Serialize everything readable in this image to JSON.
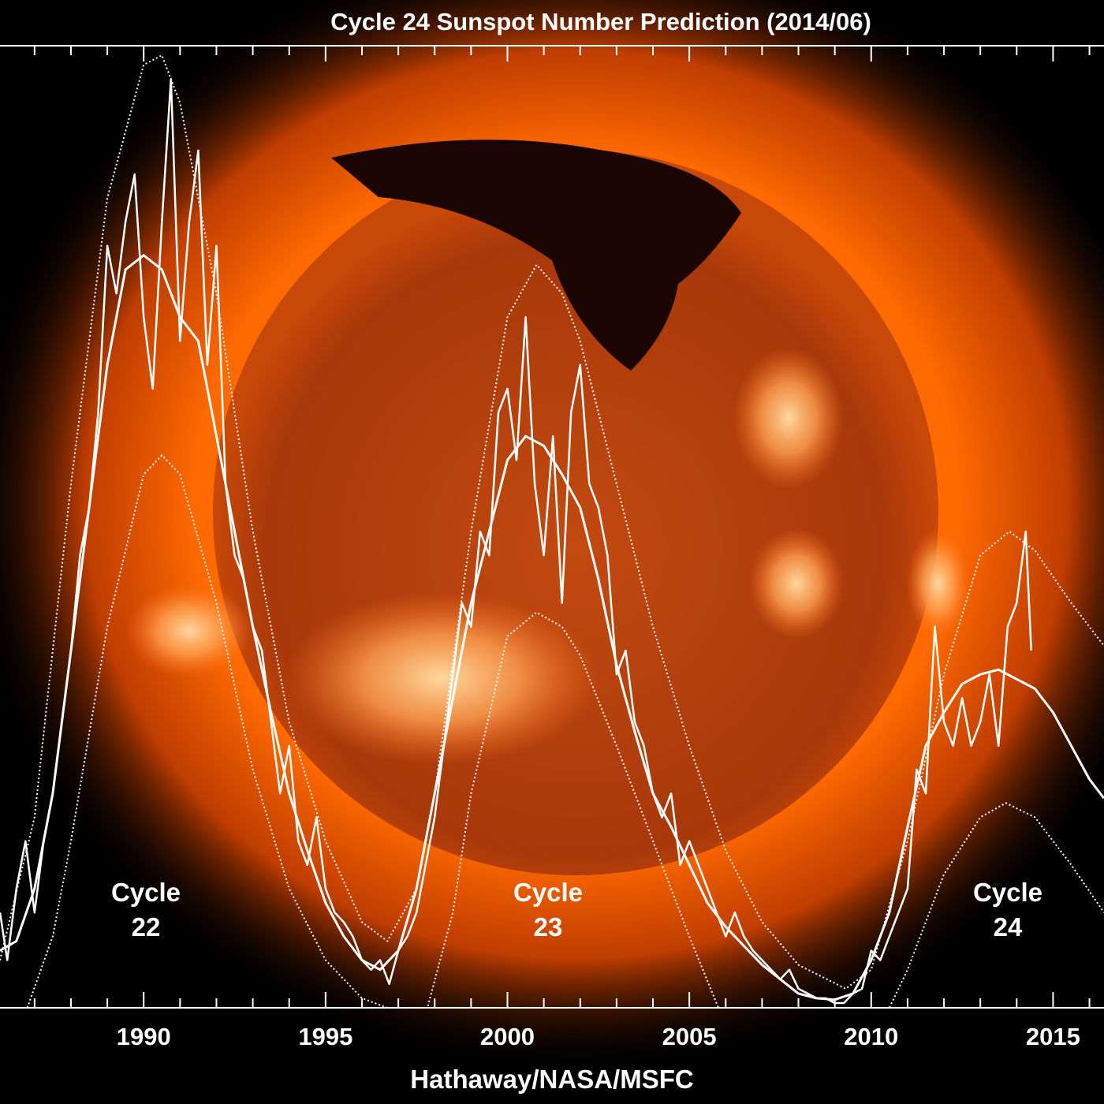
{
  "chart_data": {
    "type": "line",
    "title": "Cycle 24 Sunspot Number Prediction (2014/06)",
    "xlabel": "Hathaway/NASA/MSFC",
    "xlim": [
      1986.05,
      2016.4
    ],
    "ylim": [
      0,
      202
    ],
    "xticks": [
      1990,
      1995,
      2000,
      2005,
      2010,
      2015
    ],
    "x_minor_ticks": [
      1987,
      1988,
      1989,
      1991,
      1992,
      1993,
      1994,
      1996,
      1997,
      1998,
      1999,
      2001,
      2002,
      2003,
      2004,
      2006,
      2007,
      2008,
      2009,
      2011,
      2012,
      2013,
      2014,
      2016
    ],
    "annotations": [
      [
        "Cycle",
        "22"
      ],
      [
        "Cycle",
        "23"
      ],
      [
        "Cycle",
        "24"
      ]
    ],
    "series": [
      {
        "color": "#ffffff",
        "line_style": "solid",
        "line_width": 2.5,
        "x": [
          1986.05,
          1986.25,
          1986.5,
          1986.75,
          1987,
          1987.25,
          1987.5,
          1987.75,
          1988,
          1988.25,
          1988.5,
          1988.75,
          1989,
          1989.25,
          1989.5,
          1989.75,
          1990,
          1990.25,
          1990.5,
          1990.75,
          1991,
          1991.25,
          1991.5,
          1991.75,
          1992,
          1992.25,
          1992.5,
          1992.75,
          1993,
          1993.25,
          1993.5,
          1993.75,
          1994,
          1994.25,
          1994.5,
          1994.75,
          1995,
          1995.25,
          1995.5,
          1995.75,
          1996,
          1996.25,
          1996.5,
          1996.75,
          1997,
          1997.25,
          1997.5,
          1997.75,
          1998,
          1998.25,
          1998.5,
          1998.75,
          1999,
          1999.25,
          1999.5,
          1999.75,
          2000,
          2000.25,
          2000.5,
          2000.75,
          2001,
          2001.25,
          2001.5,
          2001.75,
          2002,
          2002.25,
          2002.5,
          2002.75,
          2003,
          2003.25,
          2003.5,
          2003.75,
          2004,
          2004.25,
          2004.5,
          2004.75,
          2005,
          2005.25,
          2005.5,
          2005.75,
          2006,
          2006.25,
          2006.5,
          2006.75,
          2007,
          2007.25,
          2007.5,
          2007.75,
          2008,
          2008.25,
          2008.5,
          2008.75,
          2009,
          2009.25,
          2009.5,
          2009.75,
          2010,
          2010.25,
          2010.5,
          2010.75,
          2011,
          2011.25,
          2011.5,
          2011.75,
          2012,
          2012.25,
          2012.5,
          2012.75,
          2013,
          2013.25,
          2013.5,
          2013.75,
          2014,
          2014.25,
          2014.4
        ],
        "values": [
          20,
          10,
          25,
          35,
          20,
          35,
          45,
          60,
          75,
          95,
          105,
          125,
          160,
          150,
          165,
          175,
          145,
          130,
          165,
          195,
          140,
          165,
          180,
          135,
          160,
          110,
          95,
          90,
          80,
          75,
          60,
          45,
          55,
          35,
          30,
          40,
          25,
          20,
          18,
          15,
          10,
          8,
          10,
          5,
          12,
          15,
          20,
          30,
          40,
          55,
          70,
          85,
          80,
          100,
          95,
          125,
          130,
          115,
          145,
          110,
          95,
          120,
          85,
          125,
          135,
          110,
          105,
          95,
          70,
          75,
          60,
          55,
          45,
          40,
          45,
          30,
          35,
          30,
          25,
          20,
          15,
          20,
          15,
          12,
          10,
          8,
          6,
          8,
          4,
          3,
          2,
          2,
          1,
          1,
          3,
          4,
          12,
          10,
          15,
          20,
          25,
          50,
          45,
          80,
          60,
          55,
          65,
          55,
          60,
          70,
          55,
          80,
          85,
          100,
          75
        ]
      },
      {
        "color": "#ffffff",
        "line_style": "solid",
        "line_width": 3,
        "x": [
          1986.05,
          1986.5,
          1987,
          1987.5,
          1988,
          1988.5,
          1989,
          1989.5,
          1990,
          1990.5,
          1991,
          1991.5,
          1992,
          1992.5,
          1993,
          1993.5,
          1994,
          1994.5,
          1995,
          1995.5,
          1996,
          1996.5,
          1997,
          1997.5,
          1998,
          1998.5,
          1999,
          1999.5,
          2000,
          2000.5,
          2001,
          2001.5,
          2002,
          2002.5,
          2003,
          2003.5,
          2004,
          2004.5,
          2005,
          2005.5,
          2006,
          2006.5,
          2007,
          2007.5,
          2008,
          2008.5,
          2009,
          2009.5,
          2010,
          2010.5,
          2011,
          2011.5,
          2012,
          2012.5,
          2013,
          2013.5,
          2014,
          2014.5,
          2015,
          2015.5,
          2016,
          2016.4
        ],
        "values": [
          12,
          14,
          25,
          45,
          75,
          105,
          135,
          155,
          158,
          155,
          145,
          140,
          120,
          100,
          80,
          62,
          45,
          33,
          22,
          15,
          10,
          8,
          12,
          25,
          45,
          65,
          85,
          100,
          115,
          120,
          118,
          112,
          105,
          90,
          72,
          58,
          45,
          38,
          30,
          22,
          17,
          13,
          9,
          6,
          3,
          2,
          1.7,
          3,
          10,
          20,
          38,
          55,
          62,
          68,
          70,
          71,
          69,
          67,
          62,
          55,
          48,
          44
        ]
      },
      {
        "color": "#ffffff",
        "line_style": "dotted",
        "line_width": 2,
        "x": [
          1986.05,
          1987,
          1988,
          1989,
          1990,
          1990.5,
          1991,
          1992,
          1993,
          1994,
          1995,
          1996,
          1996.7,
          1997.5,
          1998,
          1999,
          2000,
          2000.8,
          2001.5,
          2002,
          2003,
          2004,
          2005,
          2006,
          2007,
          2008,
          2009.3,
          2010,
          2011,
          2012,
          2013,
          2013.8,
          2014.5,
          2015.5,
          2016.4
        ],
        "values": [
          10,
          40,
          110,
          170,
          198,
          200,
          190,
          150,
          100,
          60,
          35,
          18,
          14,
          25,
          45,
          100,
          145,
          156,
          150,
          140,
          110,
          80,
          55,
          33,
          18,
          9,
          4,
          8,
          35,
          70,
          95,
          100,
          96,
          85,
          76
        ]
      },
      {
        "color": "#ffffff",
        "line_style": "dotted",
        "line_width": 2,
        "x": [
          1986.8,
          1987.5,
          1988,
          1989,
          1990,
          1990.5,
          1991,
          1992,
          1993,
          1994,
          1995,
          1996,
          1996.7,
          1997.8,
          1998.5,
          1999,
          2000,
          2000.8,
          2001.5,
          2002,
          2003,
          2004,
          2005,
          2005.8,
          2010.5,
          2011,
          2012,
          2013,
          2013.7,
          2014.5,
          2015.5,
          2016.4
        ],
        "values": [
          0,
          15,
          35,
          80,
          112,
          116,
          112,
          85,
          50,
          25,
          10,
          2,
          0,
          0,
          20,
          45,
          78,
          83,
          80,
          74,
          55,
          35,
          15,
          0,
          0,
          8,
          28,
          40,
          43,
          40,
          30,
          20
        ]
      }
    ]
  }
}
